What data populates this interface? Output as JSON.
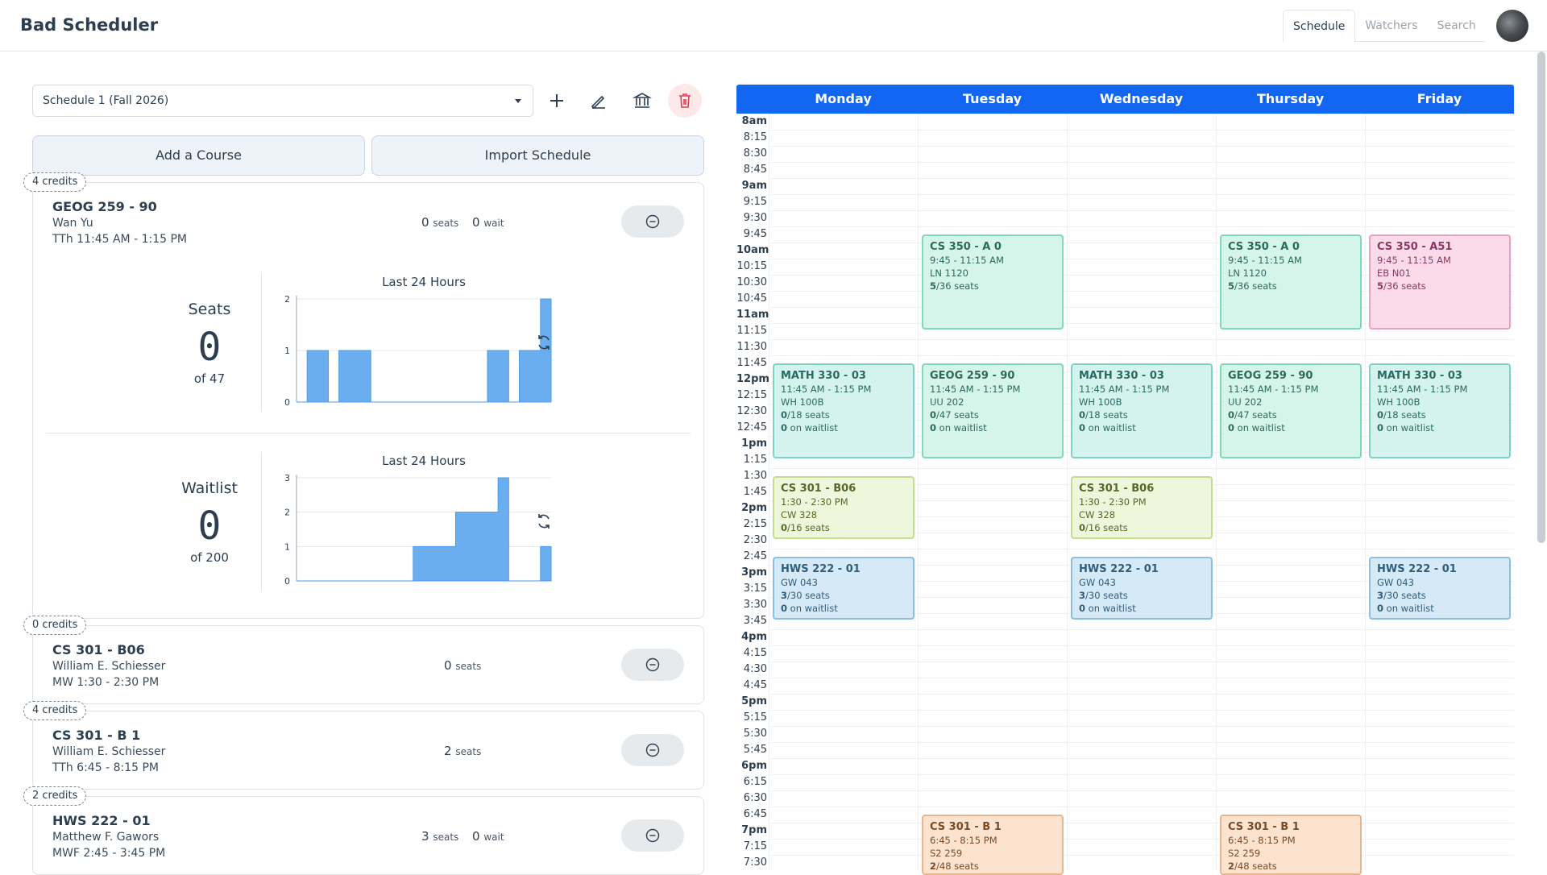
{
  "app": {
    "title": "Bad Scheduler"
  },
  "nav": {
    "tabs": [
      "Schedule",
      "Watchers",
      "Search"
    ],
    "active": "Schedule"
  },
  "toolbar": {
    "schedule_select": "Schedule 1 (Fall 2026)",
    "add_course": "Add a Course",
    "import_schedule": "Import Schedule"
  },
  "courses": [
    {
      "credits": "4 credits",
      "title": "GEOG 259 - 90",
      "instructor": "Wan Yu",
      "time": "TTh 11:45 AM - 1:15 PM",
      "seats": "0",
      "seats_label": "seats",
      "wait": "0",
      "wait_label": "wait",
      "seats_panel": {
        "label": "Seats",
        "value": "0",
        "of": "of 47",
        "chart_title": "Last 24 Hours"
      },
      "waitlist_panel": {
        "label": "Waitlist",
        "value": "0",
        "of": "of 200",
        "chart_title": "Last 24 Hours"
      }
    },
    {
      "credits": "0 credits",
      "title": "CS 301 - B06",
      "instructor": "William E. Schiesser",
      "time": "MW 1:30 - 2:30 PM",
      "seats": "0",
      "seats_label": "seats"
    },
    {
      "credits": "4 credits",
      "title": "CS 301 - B 1",
      "instructor": "William E. Schiesser",
      "time": "TTh 6:45 - 8:15 PM",
      "seats": "2",
      "seats_label": "seats"
    },
    {
      "credits": "2 credits",
      "title": "HWS 222 - 01",
      "instructor": "Matthew F. Gawors",
      "time": "MWF 2:45 - 3:45 PM",
      "seats": "3",
      "seats_label": "seats",
      "wait": "0",
      "wait_label": "wait"
    }
  ],
  "chart_data": [
    {
      "type": "area",
      "title": "Last 24 Hours",
      "ylim": [
        0,
        2
      ],
      "yticks": [
        "0",
        "1",
        "2"
      ],
      "x": [
        0,
        1,
        2,
        3,
        4,
        5,
        6,
        7,
        8,
        9,
        10,
        11,
        12,
        13,
        14,
        15,
        16,
        17,
        18,
        19,
        20,
        21,
        22,
        23,
        24
      ],
      "values": [
        0,
        1,
        1,
        0,
        1,
        1,
        1,
        0,
        0,
        0,
        0,
        0,
        0,
        0,
        0,
        0,
        0,
        0,
        1,
        1,
        0,
        1,
        1,
        2,
        0
      ]
    },
    {
      "type": "area",
      "title": "Last 24 Hours",
      "ylim": [
        0,
        3
      ],
      "yticks": [
        "0",
        "1",
        "2",
        "3"
      ],
      "x": [
        0,
        1,
        2,
        3,
        4,
        5,
        6,
        7,
        8,
        9,
        10,
        11,
        12,
        13,
        14,
        15,
        16,
        17,
        18,
        19,
        20,
        21,
        22,
        23,
        24
      ],
      "values": [
        0,
        0,
        0,
        0,
        0,
        0,
        0,
        0,
        0,
        0,
        0,
        1,
        1,
        1,
        1,
        2,
        2,
        2,
        2,
        3,
        0,
        0,
        0,
        1,
        0
      ]
    }
  ],
  "calendar": {
    "days": [
      "Monday",
      "Tuesday",
      "Wednesday",
      "Thursday",
      "Friday"
    ],
    "times": [
      "8am",
      "8:15",
      "8:30",
      "8:45",
      "9am",
      "9:15",
      "9:30",
      "9:45",
      "10am",
      "10:15",
      "10:30",
      "10:45",
      "11am",
      "11:15",
      "11:30",
      "11:45",
      "12pm",
      "12:15",
      "12:30",
      "12:45",
      "1pm",
      "1:15",
      "1:30",
      "1:45",
      "2pm",
      "2:15",
      "2:30",
      "2:45",
      "3pm",
      "3:15",
      "3:30",
      "3:45",
      "4pm",
      "4:15",
      "4:30",
      "4:45",
      "5pm",
      "5:15",
      "5:30",
      "5:45",
      "6pm",
      "6:15",
      "6:30",
      "6:45",
      "7pm",
      "7:15",
      "7:30"
    ],
    "events": [
      {
        "day": 1,
        "start": 7,
        "end": 13,
        "color": "green",
        "title": "CS 350 - A 0",
        "lines": [
          "9:45 - 11:15 AM",
          "LN 1120",
          "5/36 seats"
        ]
      },
      {
        "day": 3,
        "start": 7,
        "end": 13,
        "color": "green",
        "title": "CS 350 - A 0",
        "lines": [
          "9:45 - 11:15 AM",
          "LN 1120",
          "5/36 seats"
        ]
      },
      {
        "day": 4,
        "start": 7,
        "end": 13,
        "color": "pink",
        "title": "CS 350 - A51",
        "lines": [
          "9:45 - 11:15 AM",
          "EB N01",
          "5/36 seats"
        ]
      },
      {
        "day": 0,
        "start": 15,
        "end": 21,
        "color": "teal",
        "title": "MATH 330 - 03",
        "lines": [
          "11:45 AM - 1:15 PM",
          "WH 100B",
          "0/18 seats",
          "0 on waitlist"
        ]
      },
      {
        "day": 1,
        "start": 15,
        "end": 21,
        "color": "green",
        "title": "GEOG 259 - 90",
        "lines": [
          "11:45 AM - 1:15 PM",
          "UU 202",
          "0/47 seats",
          "0 on waitlist"
        ]
      },
      {
        "day": 2,
        "start": 15,
        "end": 21,
        "color": "teal",
        "title": "MATH 330 - 03",
        "lines": [
          "11:45 AM - 1:15 PM",
          "WH 100B",
          "0/18 seats",
          "0 on waitlist"
        ]
      },
      {
        "day": 3,
        "start": 15,
        "end": 21,
        "color": "green",
        "title": "GEOG 259 - 90",
        "lines": [
          "11:45 AM - 1:15 PM",
          "UU 202",
          "0/47 seats",
          "0 on waitlist"
        ]
      },
      {
        "day": 4,
        "start": 15,
        "end": 21,
        "color": "teal",
        "title": "MATH 330 - 03",
        "lines": [
          "11:45 AM - 1:15 PM",
          "WH 100B",
          "0/18 seats",
          "0 on waitlist"
        ]
      },
      {
        "day": 0,
        "start": 22,
        "end": 26,
        "color": "lime",
        "title": "CS 301 - B06",
        "lines": [
          "1:30 - 2:30 PM",
          "CW 328",
          "0/16 seats"
        ]
      },
      {
        "day": 2,
        "start": 22,
        "end": 26,
        "color": "lime",
        "title": "CS 301 - B06",
        "lines": [
          "1:30 - 2:30 PM",
          "CW 328",
          "0/16 seats"
        ]
      },
      {
        "day": 0,
        "start": 27,
        "end": 31,
        "color": "blue",
        "title": "HWS 222 - 01",
        "lines": [
          "GW 043",
          "3/30 seats",
          "0 on waitlist"
        ]
      },
      {
        "day": 2,
        "start": 27,
        "end": 31,
        "color": "blue",
        "title": "HWS 222 - 01",
        "lines": [
          "GW 043",
          "3/30 seats",
          "0 on waitlist"
        ]
      },
      {
        "day": 4,
        "start": 27,
        "end": 31,
        "color": "blue",
        "title": "HWS 222 - 01",
        "lines": [
          "GW 043",
          "3/30 seats",
          "0 on waitlist"
        ]
      },
      {
        "day": 1,
        "start": 43,
        "end": 49,
        "color": "orange",
        "title": "CS 301 - B 1",
        "lines": [
          "6:45 - 8:15 PM",
          "S2 259",
          "2/48 seats"
        ]
      },
      {
        "day": 3,
        "start": 43,
        "end": 49,
        "color": "orange",
        "title": "CS 301 - B 1",
        "lines": [
          "6:45 - 8:15 PM",
          "S2 259",
          "2/48 seats"
        ]
      }
    ]
  },
  "icons": {
    "add": "plus-icon",
    "edit": "pencil-icon",
    "institution": "bank-icon",
    "delete": "trash-icon",
    "remove": "minus-circle-icon",
    "refresh": "refresh-icon",
    "dropdown": "caret-down-icon"
  }
}
